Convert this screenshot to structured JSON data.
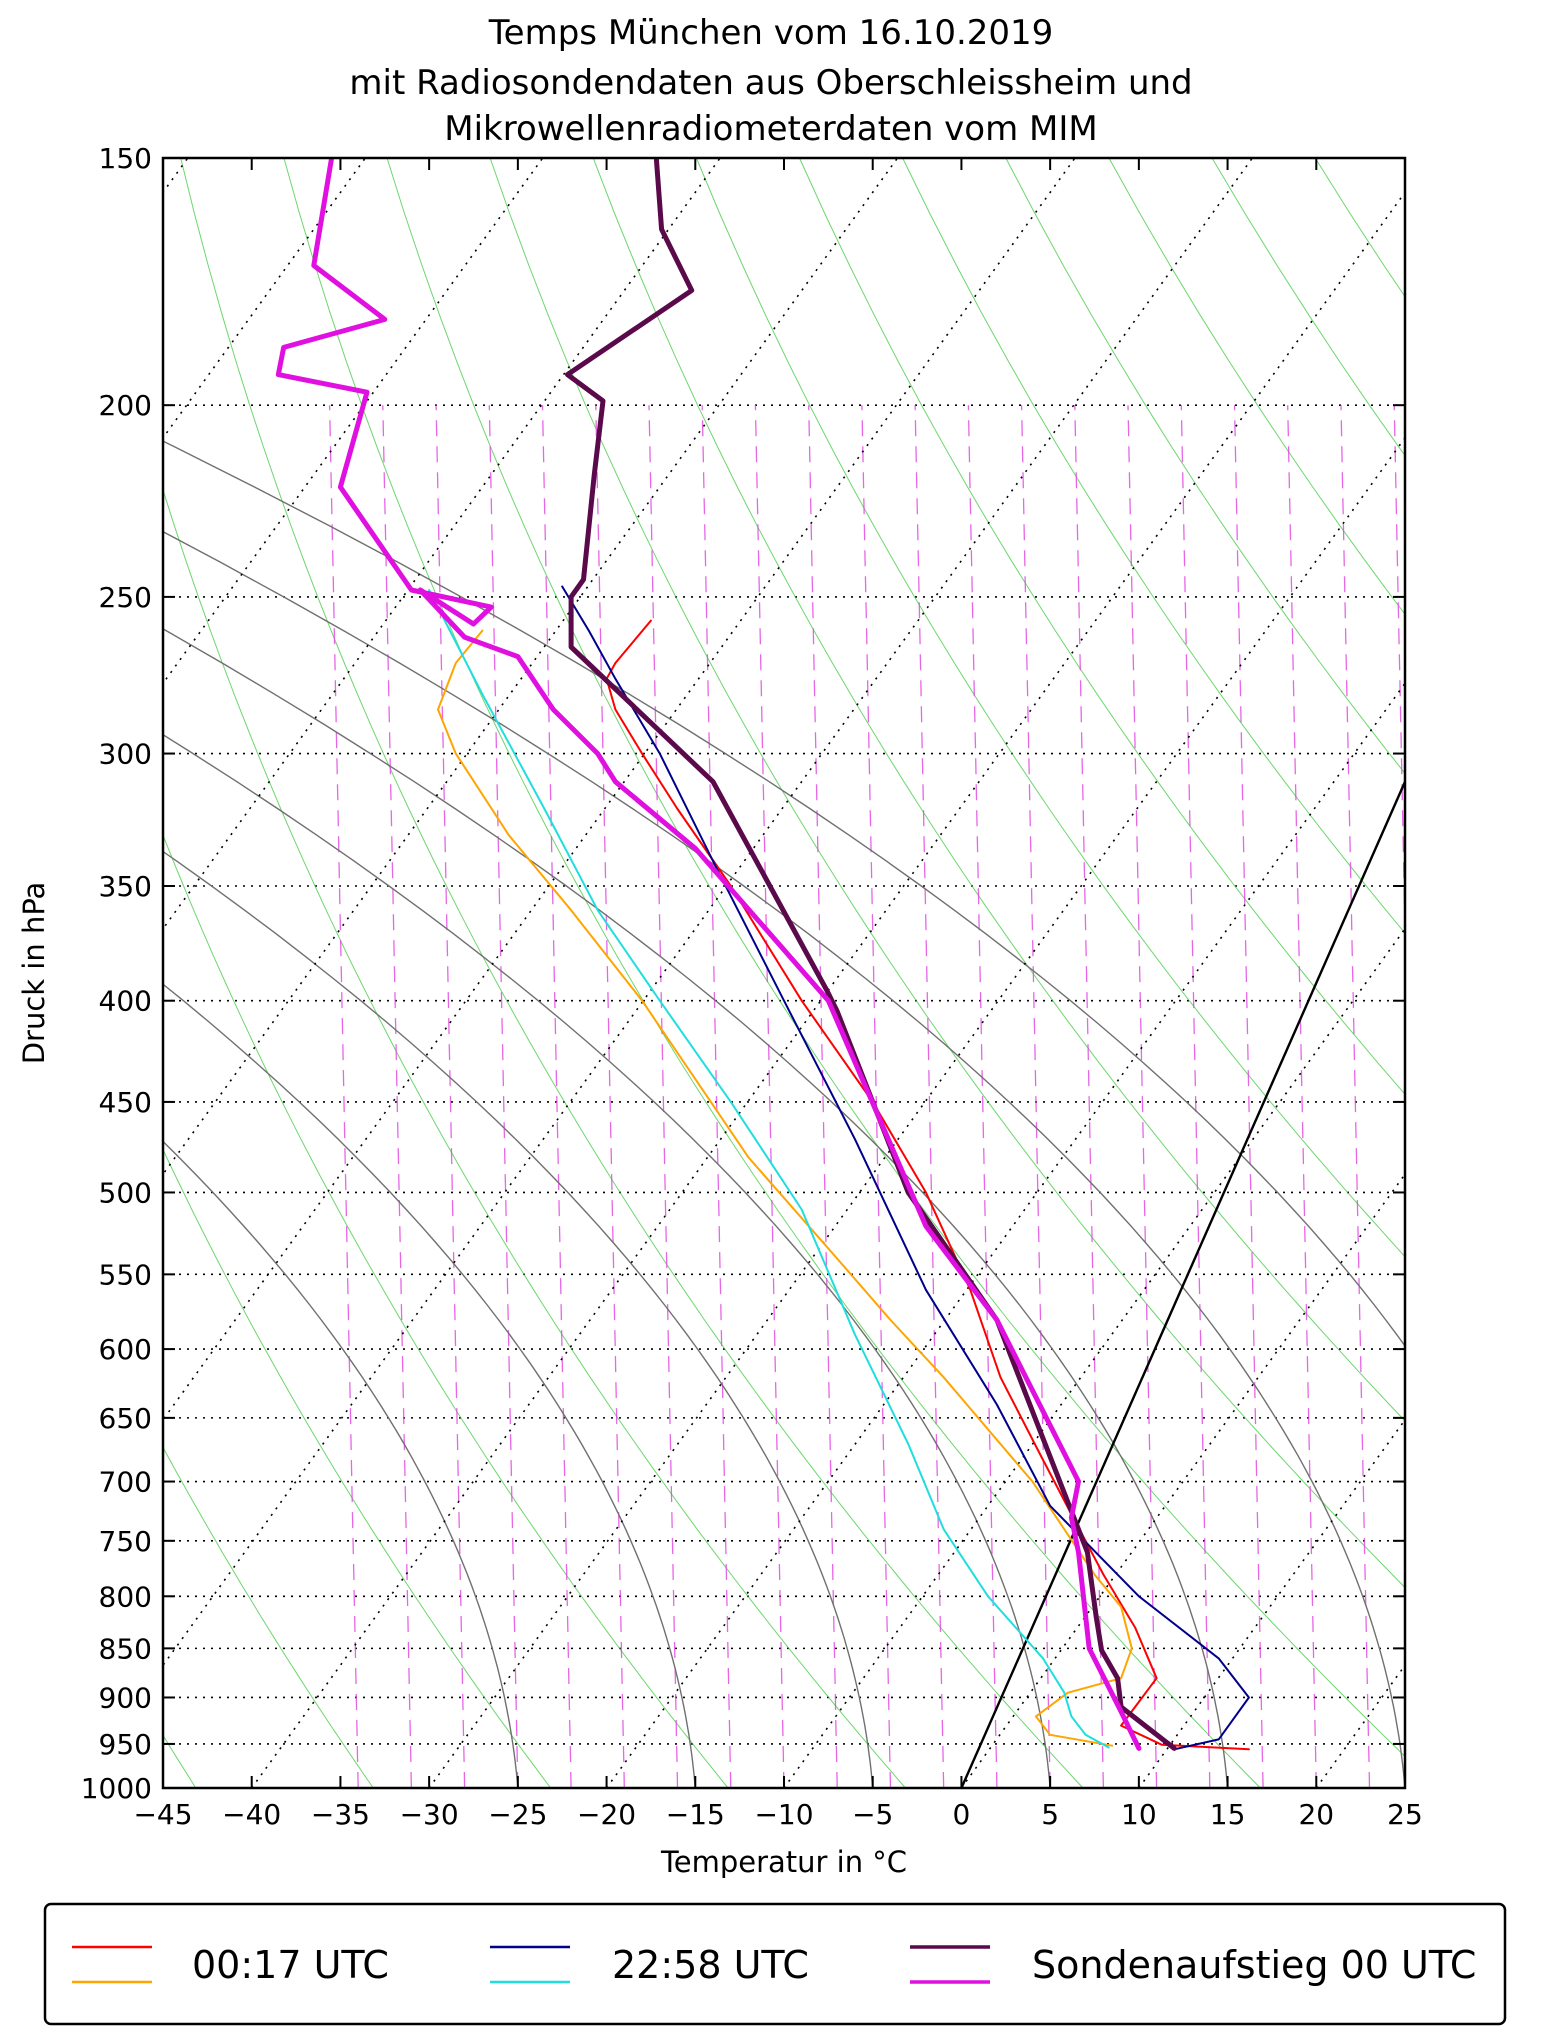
{
  "chart_data": {
    "type": "line",
    "diagram": "skew-T log-p",
    "title": [
      "Temps München vom 16.10.2019",
      "mit Radiosondendaten aus Oberschleissheim und",
      "Mikrowellenradiometerdaten vom MIM"
    ],
    "xlabel": "Temperatur in °C",
    "ylabel": "Druck in hPa",
    "xlim": [
      -45,
      25
    ],
    "ylim": [
      1000,
      150
    ],
    "y_scale": "log",
    "x_ticks": [
      -45,
      -40,
      -35,
      -30,
      -25,
      -20,
      -15,
      -10,
      -5,
      0,
      5,
      10,
      15,
      20,
      25
    ],
    "x_tick_labels": [
      "−45",
      "−40",
      "−35",
      "−30",
      "−25",
      "−20",
      "−15",
      "−10",
      "−5",
      "0",
      "5",
      "10",
      "15",
      "20",
      "25"
    ],
    "y_ticks": [
      150,
      200,
      250,
      300,
      350,
      400,
      450,
      500,
      550,
      600,
      650,
      700,
      750,
      800,
      850,
      900,
      950,
      1000
    ],
    "y_tick_labels": [
      "150",
      "200",
      "250",
      "300",
      "350",
      "400",
      "450",
      "500",
      "550",
      "600",
      "650",
      "700",
      "750",
      "800",
      "850",
      "900",
      "950",
      "1000"
    ],
    "grid": true,
    "background_lines": {
      "isotherms": {
        "color": "#000000",
        "style": "dotted",
        "temps": [
          -120,
          -110,
          -100,
          -90,
          -80,
          -70,
          -60,
          -50,
          -40,
          -30,
          -20,
          -10,
          0,
          10,
          20
        ]
      },
      "dry_adiabats": {
        "color": "#3cc83c",
        "theta_K": [
          220,
          230,
          240,
          250,
          260,
          270,
          280,
          290,
          300,
          310,
          320,
          330,
          340,
          350,
          360,
          370,
          380,
          390,
          400,
          410,
          420,
          430,
          440,
          450,
          460,
          470
        ]
      },
      "moist_adiabats": {
        "color": "#707070",
        "start_temps_C": [
          -25,
          -15,
          -5,
          5,
          15,
          25,
          35
        ]
      },
      "mixing_ratio": {
        "color": "#e040e0",
        "style": "dashed",
        "base_temps_C": [
          -34,
          -31,
          -28,
          -25,
          -22,
          -19,
          -16,
          -13,
          -10,
          -7,
          -4,
          -1,
          2,
          5,
          8,
          11,
          14,
          17,
          20,
          23,
          26
        ]
      },
      "reference_line": {
        "color": "#000000",
        "from": {
          "T": 0,
          "p": 1000
        },
        "to": {
          "T": 25,
          "p": 310
        }
      }
    },
    "series": [
      {
        "name": "00:17 UTC",
        "color": "#ff0000",
        "width": 2,
        "skewed_x": [
          16.2,
          11.3,
          9,
          11,
          9.8,
          8,
          6.3,
          4.5,
          2.2,
          0.5,
          -2,
          -5,
          -9,
          -13,
          -16,
          -18,
          -19.5,
          -20,
          -19.5,
          -17.5
        ],
        "p": [
          956,
          951,
          930,
          880,
          830,
          780,
          730,
          680,
          620,
          560,
          500,
          450,
          400,
          350,
          320,
          300,
          285,
          275,
          270,
          257
        ]
      },
      {
        "name": "00:17 UTC",
        "color": "#ffa500",
        "width": 2,
        "skewed_x": [
          8.5,
          5,
          4.2,
          6,
          9,
          9.6,
          9,
          7.5,
          4,
          -1,
          -4,
          -7,
          -12,
          -18,
          -22,
          -25.5,
          -28.5,
          -29.5,
          -28.5,
          -27
        ],
        "p": [
          952,
          940,
          920,
          895,
          880,
          850,
          810,
          780,
          700,
          620,
          580,
          540,
          480,
          400,
          360,
          330,
          300,
          285,
          270,
          260
        ]
      },
      {
        "name": "22:58 UTC",
        "color": "#00008b",
        "width": 2,
        "skewed_x": [
          12,
          14.5,
          16.2,
          14.5,
          10,
          5,
          2,
          -2,
          -6,
          -10,
          -14,
          -17,
          -19.5,
          -21,
          -22.5
        ],
        "p": [
          956,
          945,
          900,
          860,
          800,
          720,
          640,
          560,
          470,
          400,
          340,
          300,
          275,
          260,
          247
        ]
      },
      {
        "name": "22:58 UTC",
        "color": "#20dede",
        "width": 2,
        "skewed_x": [
          8.3,
          7,
          6.2,
          5.8,
          4.6,
          1.5,
          -1,
          -3,
          -6,
          -9,
          -13,
          -17,
          -20.5,
          -23.5,
          -27,
          -30
        ],
        "p": [
          954,
          940,
          920,
          895,
          860,
          800,
          740,
          670,
          590,
          510,
          450,
          400,
          360,
          320,
          280,
          248
        ]
      },
      {
        "name": "Sondenaufstieg 00 UTC",
        "color": "#5a0a4a",
        "width": 5,
        "skewed_x": [
          12,
          9,
          8.8,
          7.9,
          7.6,
          7.1,
          5,
          2,
          -3,
          -7,
          -7.6,
          -14,
          -22,
          -22,
          -22,
          -21.3,
          -20.7,
          -20.2,
          -22.2,
          -15.2,
          -16.9,
          -17.2
        ],
        "p": [
          955,
          910,
          880,
          852,
          820,
          760,
          680,
          580,
          500,
          405,
          395,
          310,
          265,
          258,
          250,
          245,
          217,
          199,
          193,
          175,
          163,
          150
        ]
      },
      {
        "name": "Sondenaufstieg 00 UTC",
        "color": "#e010e0",
        "width": 5,
        "skewed_x": [
          10,
          9,
          7.2,
          6.6,
          6.2,
          6.6,
          2,
          -2,
          -7.5,
          -15,
          -19.5,
          -20.5,
          -23,
          -25,
          -28,
          -30.5,
          -27.5,
          -26.5,
          -31,
          -35,
          -33.5,
          -38.5,
          -38.2,
          -32.5,
          -36.5,
          -35.5
        ],
        "p": [
          955,
          915,
          850,
          760,
          730,
          700,
          580,
          520,
          400,
          335,
          310,
          300,
          285,
          268,
          262,
          248,
          258,
          253,
          248,
          220,
          197,
          193,
          187,
          181,
          170,
          150
        ]
      }
    ],
    "legend": {
      "placement": "bottom",
      "entries": [
        {
          "label": "00:17 UTC",
          "colors": [
            "#ff0000",
            "#ffa500"
          ]
        },
        {
          "label": "22:58 UTC",
          "colors": [
            "#00008b",
            "#20dede"
          ]
        },
        {
          "label": "Sondenaufstieg 00 UTC",
          "colors": [
            "#5a0a4a",
            "#e010e0"
          ]
        }
      ]
    }
  }
}
